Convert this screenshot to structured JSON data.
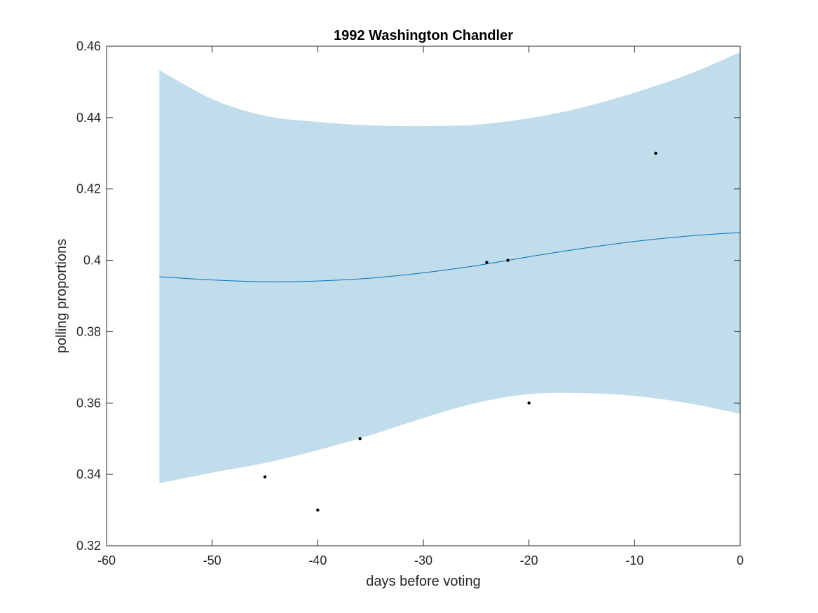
{
  "chart_data": {
    "type": "line",
    "title": "1992 Washington Chandler",
    "xlabel": "days before voting",
    "ylabel": "polling proportions",
    "xlim": [
      -60,
      0
    ],
    "ylim": [
      0.32,
      0.46
    ],
    "xticks": [
      -60,
      -50,
      -40,
      -30,
      -20,
      -10,
      0
    ],
    "xtick_labels": [
      "-60",
      "-50",
      "-40",
      "-30",
      "-20",
      "-10",
      "0"
    ],
    "yticks": [
      0.32,
      0.34,
      0.36,
      0.38,
      0.4,
      0.42,
      0.44,
      0.46
    ],
    "ytick_labels": [
      "0.32",
      "0.34",
      "0.36",
      "0.38",
      "0.4",
      "0.42",
      "0.44",
      "0.46"
    ],
    "grid": false,
    "band": {
      "x": [
        -55,
        -50,
        -45,
        -40,
        -35,
        -30,
        -25,
        -20,
        -15,
        -10,
        -5,
        0
      ],
      "upper": [
        0.4533,
        0.4452,
        0.4405,
        0.4388,
        0.4378,
        0.4376,
        0.438,
        0.4398,
        0.4428,
        0.447,
        0.452,
        0.4583
      ],
      "lower": [
        0.3375,
        0.3405,
        0.3432,
        0.3468,
        0.351,
        0.3558,
        0.36,
        0.3625,
        0.3628,
        0.362,
        0.36,
        0.357
      ],
      "color": "#c1dcea"
    },
    "series": [
      {
        "x": [
          -55,
          -50,
          -45,
          -40,
          -35,
          -30,
          -25,
          -20,
          -15,
          -10,
          -5,
          0
        ],
        "y": [
          0.3954,
          0.3945,
          0.394,
          0.3942,
          0.395,
          0.3965,
          0.3985,
          0.401,
          0.4033,
          0.4053,
          0.4068,
          0.4078
        ],
        "color": "#0072bd"
      }
    ],
    "points": {
      "x": [
        -45,
        -40,
        -36,
        -24,
        -22,
        -20,
        -8
      ],
      "y": [
        0.3393,
        0.33,
        0.35,
        0.3994,
        0.4,
        0.36,
        0.43
      ],
      "color": "#000000"
    }
  }
}
